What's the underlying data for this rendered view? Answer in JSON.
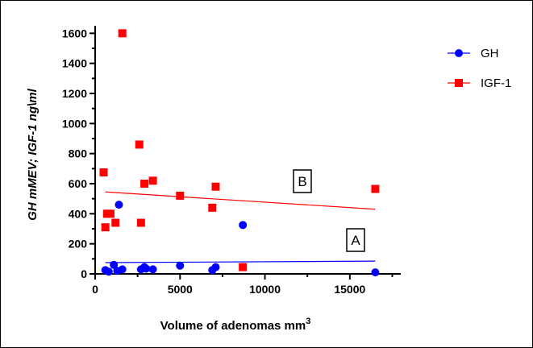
{
  "chart_data": {
    "type": "scatter",
    "xlabel": "Volume of adenomas mm",
    "xlabel_sup": "3",
    "ylabel": "GH mMEV; IGF-1 ng\\ml",
    "xlim": [
      0,
      18000
    ],
    "ylim": [
      0,
      1650
    ],
    "x_ticks": [
      0,
      5000,
      10000,
      15000
    ],
    "x_tick_labels": [
      "0",
      "5000",
      "10000",
      "15000"
    ],
    "y_ticks": [
      0,
      200,
      400,
      600,
      800,
      1000,
      1200,
      1400,
      1600
    ],
    "y_tick_labels": [
      "0",
      "200",
      "400",
      "600",
      "800",
      "1000",
      "1200",
      "1400",
      "1600"
    ],
    "legend_position": "top-right",
    "grid": false,
    "series": [
      {
        "name": "GH",
        "marker": "circle",
        "color": "#0000ff",
        "points": [
          [
            600,
            25
          ],
          [
            800,
            15
          ],
          [
            1100,
            60
          ],
          [
            1300,
            20
          ],
          [
            1400,
            460
          ],
          [
            1600,
            30
          ],
          [
            2700,
            30
          ],
          [
            2900,
            45
          ],
          [
            3000,
            35
          ],
          [
            3400,
            30
          ],
          [
            5000,
            55
          ],
          [
            6900,
            25
          ],
          [
            7100,
            45
          ],
          [
            8700,
            325
          ],
          [
            16500,
            10
          ]
        ],
        "trend": [
          [
            600,
            75
          ],
          [
            16500,
            85
          ]
        ],
        "trend_label": "A"
      },
      {
        "name": "IGF-1",
        "marker": "square",
        "color": "#ff0000",
        "points": [
          [
            500,
            675
          ],
          [
            600,
            310
          ],
          [
            700,
            400
          ],
          [
            900,
            400
          ],
          [
            1200,
            340
          ],
          [
            1600,
            1600
          ],
          [
            2600,
            860
          ],
          [
            2700,
            340
          ],
          [
            2900,
            600
          ],
          [
            3400,
            620
          ],
          [
            5000,
            520
          ],
          [
            6900,
            440
          ],
          [
            7100,
            580
          ],
          [
            8700,
            45
          ],
          [
            16500,
            565
          ]
        ],
        "trend": [
          [
            600,
            545
          ],
          [
            16500,
            430
          ]
        ],
        "trend_label": "B"
      }
    ]
  }
}
